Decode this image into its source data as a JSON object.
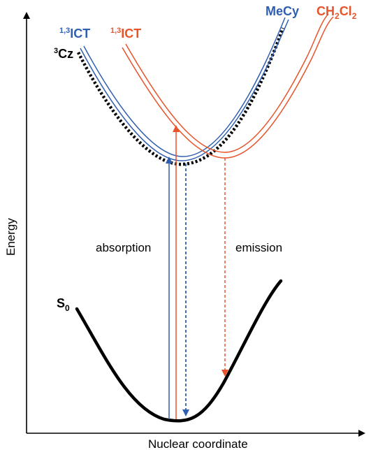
{
  "axes": {
    "x_label": "Nuclear coordinate",
    "y_label": "Energy"
  },
  "labels": {
    "absorption": "absorption",
    "emission": "emission",
    "ground_state": {
      "main": "S",
      "sub": "0"
    },
    "triplet_cz": {
      "sup": "3",
      "main": "Cz"
    },
    "ict_mecy": {
      "sup": "1,3",
      "main": "ICT"
    },
    "ict_ch2cl2": {
      "sup": "1,3",
      "main": "ICT"
    },
    "solvent_mecy": "MeCy",
    "solvent_ch2cl2": {
      "a": "CH",
      "b": "2",
      "c": "Cl",
      "d": "2"
    }
  },
  "colors": {
    "black": "#000000",
    "blue": "#2f5fb0",
    "orange": "#e8532a"
  },
  "curves": [
    "S0 ground state",
    "3Cz locally excited triplet",
    "1,3ICT in MeCy",
    "1,3ICT in CH2Cl2"
  ],
  "transitions": [
    "absorption (blue)",
    "absorption (orange)",
    "emission MeCy (blue dashed)",
    "emission CH2Cl2 (orange dashed)"
  ]
}
